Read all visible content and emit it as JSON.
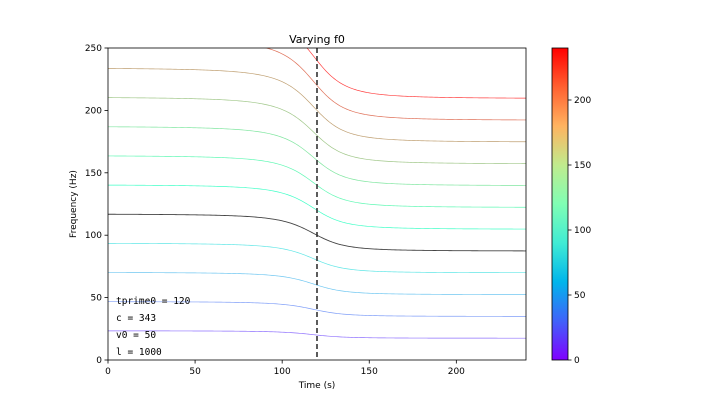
{
  "chart_data": {
    "type": "line",
    "title": "Varying f0",
    "xlabel": "Time (s)",
    "ylabel": "Frequency (Hz)",
    "xlim": [
      0,
      240
    ],
    "ylim": [
      0,
      250
    ],
    "xticks": [
      0,
      50,
      100,
      150,
      200
    ],
    "yticks": [
      0,
      50,
      100,
      150,
      200,
      250
    ],
    "vline": {
      "x": 120,
      "style": "dashed",
      "color": "#333333"
    },
    "highlight_color": "#444444",
    "colorbar": {
      "colormap": "rainbow",
      "range": [
        0,
        240
      ],
      "ticks": [
        0,
        50,
        100,
        150,
        200
      ]
    },
    "annotations": [
      "tprime0 = 120",
      "c = 343",
      "v0 = 50",
      "l = 1000"
    ],
    "series": [
      {
        "f0": 20,
        "highlighted": false
      },
      {
        "f0": 40,
        "highlighted": false
      },
      {
        "f0": 60,
        "highlighted": false
      },
      {
        "f0": 80,
        "highlighted": false
      },
      {
        "f0": 100,
        "highlighted": true
      },
      {
        "f0": 120,
        "highlighted": false
      },
      {
        "f0": 140,
        "highlighted": false
      },
      {
        "f0": 160,
        "highlighted": false
      },
      {
        "f0": 180,
        "highlighted": false
      },
      {
        "f0": 200,
        "highlighted": false
      },
      {
        "f0": 220,
        "highlighted": false
      },
      {
        "f0": 240,
        "highlighted": false
      }
    ]
  }
}
